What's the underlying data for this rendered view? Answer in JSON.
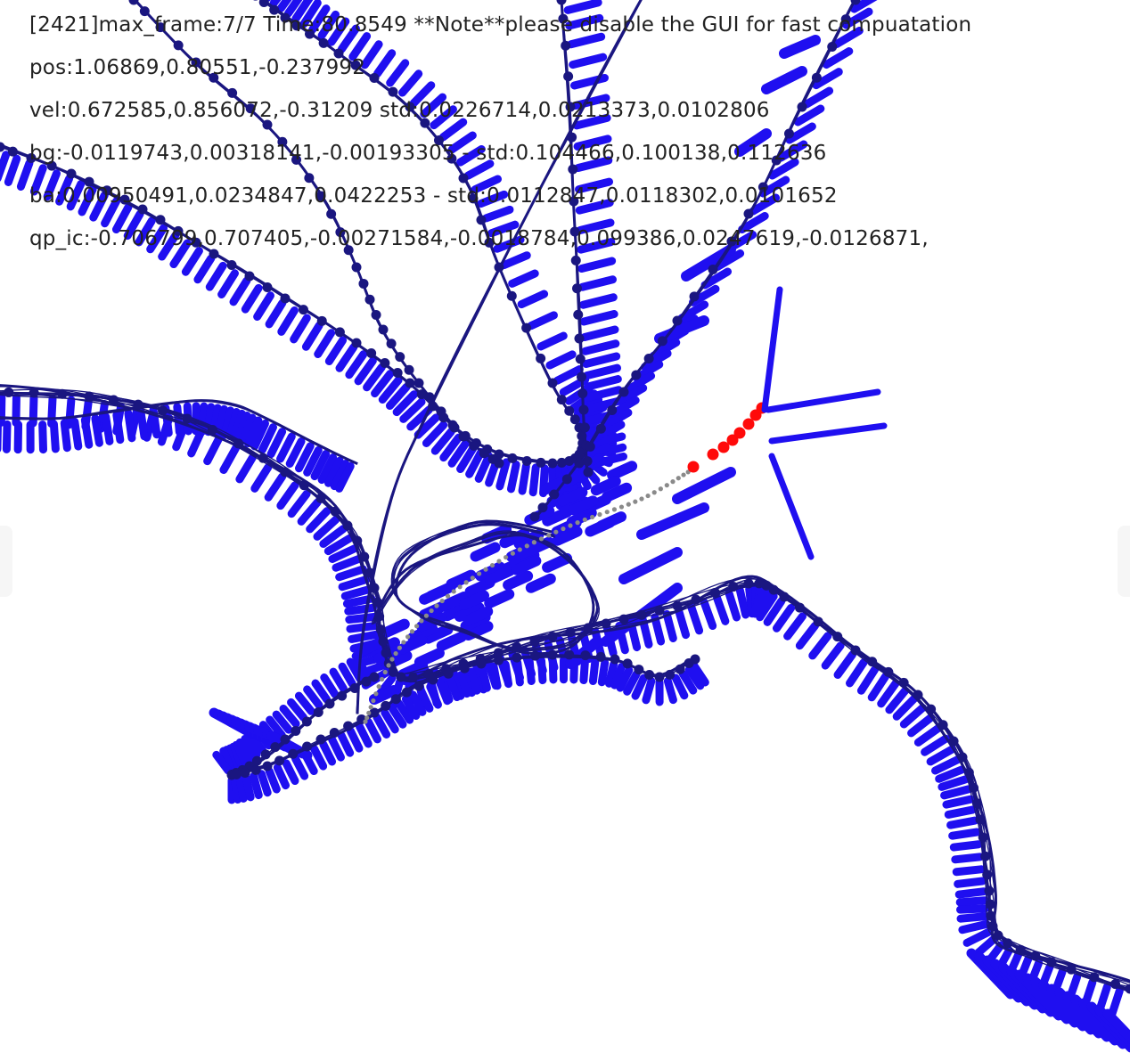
{
  "hud": {
    "line1": "[2421]max_frame:7/7 Time:80.8549 **Note**please disable the GUI for fast compuatation",
    "pos": "pos:1.06869,0.80551,-0.237992",
    "vel": "vel:0.672585,0.856072,-0.31209 std:0.0226714,0.0213373,0.0102806",
    "bg": "bg:-0.0119743,0.00318141,-0.00193305 - std:0.104466,0.100138,0.112636",
    "ba": "ba:0.00950491,0.0234847,0.0422253 - std:0.0112847,0.0118302,0.0101652",
    "qp_ic": "qp_ic:-0.706799,0.707405,-0.00271584,-0.0018784,0.099386,0.0247619,-0.0126871,"
  },
  "colors": {
    "pose_blue": "#1f0ff0",
    "trajectory_navy": "#1a1680",
    "current_red": "#ff0a0a",
    "prediction_gray": "#8a8a8a"
  }
}
